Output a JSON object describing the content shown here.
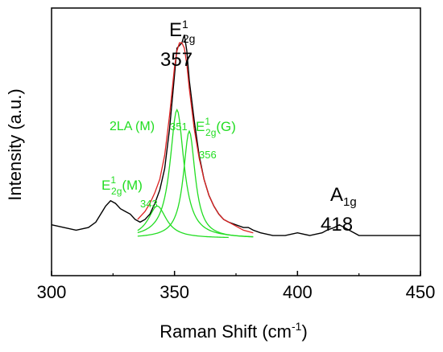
{
  "chart_data": {
    "type": "line",
    "xlabel": "Raman Shift (cm",
    "xlabel_sup": "-1",
    "xlabel_end": ")",
    "ylabel": "Intensity (a.u.)",
    "xlim": [
      300,
      450
    ],
    "ylim": [
      0,
      1.0
    ],
    "x_ticks": [
      "300",
      "350",
      "400",
      "450"
    ],
    "grid": false,
    "series": [
      {
        "color": "#000000",
        "points": [
          [
            300,
            0.19
          ],
          [
            305,
            0.18
          ],
          [
            310,
            0.17
          ],
          [
            315,
            0.18
          ],
          [
            318,
            0.2
          ],
          [
            320,
            0.23
          ],
          [
            322,
            0.26
          ],
          [
            324,
            0.28
          ],
          [
            326,
            0.27
          ],
          [
            328,
            0.25
          ],
          [
            330,
            0.24
          ],
          [
            332,
            0.23
          ],
          [
            334,
            0.21
          ],
          [
            336,
            0.2
          ],
          [
            338,
            0.21
          ],
          [
            340,
            0.23
          ],
          [
            342,
            0.27
          ],
          [
            344,
            0.32
          ],
          [
            346,
            0.4
          ],
          [
            348,
            0.55
          ],
          [
            350,
            0.75
          ],
          [
            351,
            0.85
          ],
          [
            352,
            0.86
          ],
          [
            353,
            0.87
          ],
          [
            354,
            0.9
          ],
          [
            355,
            0.84
          ],
          [
            356,
            0.73
          ],
          [
            358,
            0.58
          ],
          [
            360,
            0.45
          ],
          [
            362,
            0.36
          ],
          [
            364,
            0.3
          ],
          [
            366,
            0.26
          ],
          [
            368,
            0.23
          ],
          [
            370,
            0.21
          ],
          [
            372,
            0.2
          ],
          [
            375,
            0.19
          ],
          [
            378,
            0.18
          ],
          [
            380,
            0.18
          ],
          [
            382,
            0.17
          ],
          [
            385,
            0.16
          ],
          [
            390,
            0.15
          ],
          [
            395,
            0.15
          ],
          [
            400,
            0.16
          ],
          [
            405,
            0.15
          ],
          [
            410,
            0.16
          ],
          [
            412,
            0.17
          ],
          [
            415,
            0.18
          ],
          [
            417,
            0.19
          ],
          [
            419,
            0.18
          ],
          [
            421,
            0.17
          ],
          [
            425,
            0.15
          ],
          [
            430,
            0.15
          ],
          [
            440,
            0.15
          ],
          [
            450,
            0.15
          ]
        ]
      },
      {
        "color": "#dd2222",
        "points": [
          [
            335,
            0.21
          ],
          [
            338,
            0.24
          ],
          [
            340,
            0.27
          ],
          [
            342,
            0.31
          ],
          [
            344,
            0.36
          ],
          [
            346,
            0.45
          ],
          [
            348,
            0.6
          ],
          [
            350,
            0.78
          ],
          [
            351,
            0.84
          ],
          [
            352,
            0.87
          ],
          [
            353,
            0.87
          ],
          [
            354,
            0.85
          ],
          [
            355,
            0.79
          ],
          [
            356,
            0.7
          ],
          [
            358,
            0.55
          ],
          [
            360,
            0.44
          ],
          [
            362,
            0.36
          ],
          [
            364,
            0.3
          ],
          [
            366,
            0.26
          ],
          [
            368,
            0.23
          ],
          [
            370,
            0.21
          ],
          [
            374,
            0.19
          ],
          [
            378,
            0.17
          ],
          [
            382,
            0.16
          ]
        ]
      }
    ],
    "components": [
      {
        "color": "#22dd22",
        "center": 343,
        "amp": 0.12,
        "width": 4.5,
        "range": [
          335,
          372
        ]
      },
      {
        "color": "#22dd22",
        "center": 351,
        "amp": 0.48,
        "width": 3.4,
        "range": [
          335,
          382
        ]
      },
      {
        "color": "#22dd22",
        "center": 356,
        "amp": 0.4,
        "width": 2.9,
        "range": [
          335,
          382
        ]
      }
    ],
    "component_baseline": 0.14,
    "annotations": {
      "e2g_label": "E",
      "e2g_sup": "1",
      "e2g_sub": "2g",
      "e2g_value": "357",
      "a1g_label": "A",
      "a1g_sub": "1g",
      "a1g_value": "418",
      "la_label": "2LA (M)",
      "la_value": "351",
      "e2gG_label": "E",
      "e2gG_sup": "1",
      "e2gG_sub": "2g",
      "e2gG_tail": "(G)",
      "e2gG_value": "356",
      "e2gM_label": "E",
      "e2gM_sup": "1",
      "e2gM_sub": "2g",
      "e2gM_tail": "(M)",
      "e2gM_value": "343"
    }
  }
}
